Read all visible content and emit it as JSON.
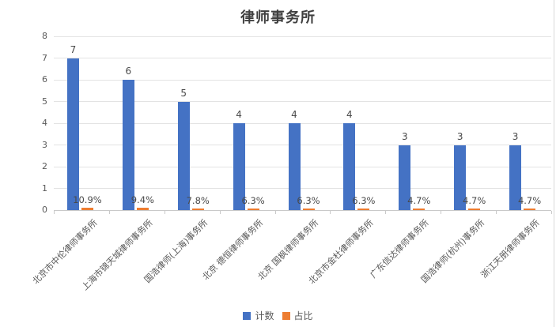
{
  "chart_data": {
    "type": "bar",
    "title": "律师事务所",
    "categories": [
      "北京市中伦律师事务所",
      "上海市锦天城律师事务所",
      "国浩律师(上海)事务所",
      "北京 德恒律师事务所",
      "北京 国枫律师事务所",
      "北京市金杜律师事务所",
      "广东信达律师事务所",
      "国浩律师(杭州)事务所",
      "浙江天册律师事务所"
    ],
    "series": [
      {
        "name": "计数",
        "color": "#4472C4",
        "values": [
          7,
          6,
          5,
          4,
          4,
          4,
          3,
          3,
          3
        ],
        "labels": [
          "7",
          "6",
          "5",
          "4",
          "4",
          "4",
          "3",
          "3",
          "3"
        ]
      },
      {
        "name": "占比",
        "color": "#ED7D31",
        "values": [
          0.109,
          0.094,
          0.078,
          0.063,
          0.063,
          0.063,
          0.047,
          0.047,
          0.047
        ],
        "labels": [
          "10.9%",
          "9.4%",
          "7.8%",
          "6.3%",
          "6.3%",
          "6.3%",
          "4.7%",
          "4.7%",
          "4.7%"
        ]
      }
    ],
    "ylim": [
      0,
      8
    ],
    "yticks": [
      "0",
      "1",
      "2",
      "3",
      "4",
      "5",
      "6",
      "7",
      "8"
    ],
    "grid": true,
    "legend_position": "bottom",
    "colors": {
      "gridline": "#e3e3e3",
      "axis": "#c9c9c9",
      "text": "#595959",
      "title": "#3f3f3f"
    }
  }
}
